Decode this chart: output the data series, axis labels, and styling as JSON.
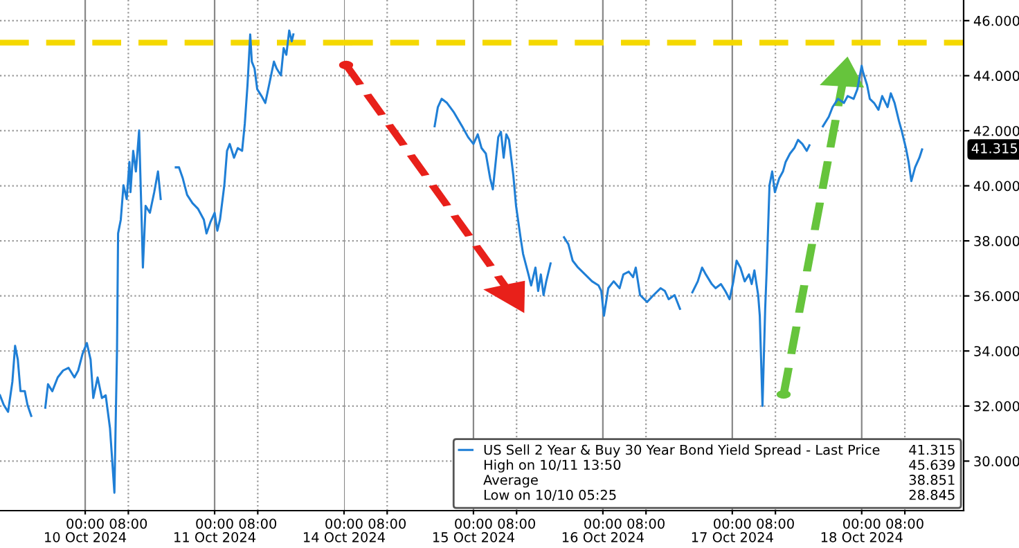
{
  "chart_data": [
    {
      "type": "line",
      "tick_labels": "x",
      "xlim": [
        "2024-10-09T08:12",
        "2024-10-12T00:00"
      ],
      "ylim": [
        28.2,
        46.75
      ],
      "xticks": [
        {
          "value": "2024-10-10T00:00",
          "label": "00:00\n10 Oct 2024"
        },
        {
          "value": "2024-10-10T08:00",
          "label": "08:00"
        },
        {
          "value": "2024-10-11T00:00",
          "label": "00:00\n11 Oct 2024"
        },
        {
          "value": "2024-10-11T08:00",
          "label": "08:00"
        }
      ],
      "yticks": [
        30,
        32,
        34,
        36,
        38,
        40,
        42,
        44,
        46
      ],
      "grid": true,
      "line_style": "solid",
      "marker": "none",
      "series": [
        {
          "color": "#1f7fd6",
          "x": [
            "2024-10-09T08:12",
            "2024-10-09T08:54",
            "2024-10-09T09:42",
            "2024-10-09T10:30",
            "2024-10-09T11:00",
            "2024-10-09T11:30",
            "2024-10-09T12:00",
            "2024-10-09T12:48",
            "2024-10-09T13:18",
            "2024-10-09T14:00",
            "2024-10-09T15:18",
            "2024-10-09T16:36",
            "2024-10-09T17:06",
            "2024-10-09T17:54",
            "2024-10-09T18:54",
            "2024-10-09T19:54",
            "2024-10-09T20:54",
            "2024-10-09T22:00",
            "2024-10-09T22:42",
            "2024-10-09T23:30",
            "2024-10-10T00:18",
            "2024-10-10T01:00",
            "2024-10-10T01:30",
            "2024-10-10T02:18",
            "2024-10-10T03:06",
            "2024-10-10T03:48",
            "2024-10-10T04:36",
            "2024-10-10T05:25",
            "2024-10-10T05:54",
            "2024-10-10T06:06",
            "2024-10-10T06:36",
            "2024-10-10T07:06",
            "2024-10-10T07:42",
            "2024-10-10T08:12",
            "2024-10-10T08:24",
            "2024-10-10T08:54",
            "2024-10-10T09:24",
            "2024-10-10T10:00",
            "2024-10-10T10:30",
            "2024-10-10T10:42",
            "2024-10-10T11:12",
            "2024-10-10T12:00",
            "2024-10-10T12:48",
            "2024-10-10T13:30",
            "2024-10-10T14:00",
            "2024-10-10T15:24",
            "2024-10-10T16:48",
            "2024-10-10T17:24",
            "2024-10-10T18:06",
            "2024-10-10T18:54",
            "2024-10-10T19:54",
            "2024-10-10T20:54",
            "2024-10-10T22:00",
            "2024-10-10T22:30",
            "2024-10-10T23:12",
            "2024-10-11T00:00",
            "2024-10-11T00:30",
            "2024-10-11T01:00",
            "2024-10-11T01:48",
            "2024-10-11T02:18",
            "2024-10-11T02:48",
            "2024-10-11T03:36",
            "2024-10-11T04:18",
            "2024-10-11T05:06",
            "2024-10-11T05:36",
            "2024-10-11T06:06",
            "2024-10-11T06:36",
            "2024-10-11T06:54",
            "2024-10-11T07:24",
            "2024-10-11T07:54",
            "2024-10-11T08:42",
            "2024-10-11T09:24",
            "2024-10-11T10:12",
            "2024-10-11T11:00",
            "2024-10-11T11:30",
            "2024-10-11T12:18",
            "2024-10-11T12:48",
            "2024-10-11T13:18",
            "2024-10-11T13:50",
            "2024-10-11T14:18",
            "2024-10-11T14:36"
          ],
          "values": [
            32.39,
            32.04,
            31.79,
            32.89,
            34.19,
            33.69,
            32.54,
            32.54,
            32.04,
            31.64,
            null,
            31.94,
            32.79,
            32.54,
            33.04,
            33.29,
            33.39,
            33.04,
            33.29,
            33.89,
            34.29,
            33.69,
            32.29,
            33.04,
            32.29,
            32.39,
            31.19,
            28.85,
            34.04,
            38.27,
            38.77,
            40.02,
            39.52,
            40.87,
            39.77,
            41.27,
            40.52,
            42.01,
            38.52,
            37.03,
            39.27,
            39.02,
            39.77,
            40.52,
            39.52,
            null,
            40.67,
            40.67,
            40.27,
            39.67,
            39.37,
            39.17,
            38.77,
            38.27,
            38.67,
            39.02,
            38.37,
            38.77,
            40.02,
            41.27,
            41.52,
            41.02,
            41.37,
            41.27,
            42.26,
            43.66,
            45.5,
            44.51,
            44.26,
            43.51,
            43.26,
            43.01,
            43.76,
            44.51,
            44.26,
            44.01,
            45.0,
            44.76,
            45.64,
            45.25,
            45.5
          ]
        }
      ],
      "ref_lines": [
        {
          "axis": "y",
          "value": 45.2,
          "color": "#f5d800",
          "line_style": "dashed"
        }
      ]
    },
    {
      "type": "line",
      "xlim": [
        "2024-10-14T00:00",
        "2024-10-18T18:54"
      ],
      "ylim": [
        28.2,
        46.75
      ],
      "xticks": [
        {
          "value": "2024-10-14T00:00",
          "label": "00:00\n14 Oct 2024"
        },
        {
          "value": "2024-10-14T08:00",
          "label": "08:00"
        },
        {
          "value": "2024-10-15T00:00",
          "label": "00:00\n15 Oct 2024"
        },
        {
          "value": "2024-10-15T08:00",
          "label": "08:00"
        },
        {
          "value": "2024-10-16T00:00",
          "label": "00:00\n16 Oct 2024"
        },
        {
          "value": "2024-10-16T08:00",
          "label": "08:00"
        },
        {
          "value": "2024-10-17T00:00",
          "label": "00:00\n17 Oct 2024"
        },
        {
          "value": "2024-10-17T08:00",
          "label": "08:00"
        },
        {
          "value": "2024-10-18T00:00",
          "label": "00:00\n18 Oct 2024"
        },
        {
          "value": "2024-10-18T08:00",
          "label": "08:00"
        }
      ],
      "yticks": [
        {
          "value": 30,
          "label": "30.000"
        },
        {
          "value": 32,
          "label": "32.000"
        },
        {
          "value": 34,
          "label": "34.000"
        },
        {
          "value": 36,
          "label": "36.000"
        },
        {
          "value": 38,
          "label": "38.000"
        },
        {
          "value": 40,
          "label": "40.000"
        },
        {
          "value": 42,
          "label": "42.000"
        },
        {
          "value": 44,
          "label": "44.000"
        },
        {
          "value": 46,
          "label": "46.000"
        }
      ],
      "grid": true,
      "legend": "bottom right",
      "line_style": "solid",
      "marker": "none",
      "series": [
        {
          "name": "US Sell 2 Year & Buy 30 Year Bond Yield Spread - Last Price",
          "color": "#1f7fd6",
          "x": [
            "2024-10-14T16:48",
            "2024-10-14T17:24",
            "2024-10-14T18:06",
            "2024-10-14T19:06",
            "2024-10-14T20:24",
            "2024-10-14T21:54",
            "2024-10-14T23:00",
            "2024-10-15T00:00",
            "2024-10-15T00:48",
            "2024-10-15T01:30",
            "2024-10-15T02:18",
            "2024-10-15T03:06",
            "2024-10-15T03:36",
            "2024-10-15T04:36",
            "2024-10-15T05:06",
            "2024-10-15T05:36",
            "2024-10-15T06:06",
            "2024-10-15T06:36",
            "2024-10-15T07:24",
            "2024-10-15T07:54",
            "2024-10-15T08:42",
            "2024-10-15T09:12",
            "2024-10-15T10:12",
            "2024-10-15T10:42",
            "2024-10-15T11:30",
            "2024-10-15T12:00",
            "2024-10-15T12:30",
            "2024-10-15T13:00",
            "2024-10-15T13:30",
            "2024-10-15T14:18",
            "2024-10-15T15:30",
            "2024-10-15T16:48",
            "2024-10-15T17:36",
            "2024-10-15T18:24",
            "2024-10-15T19:24",
            "2024-10-15T20:42",
            "2024-10-15T22:00",
            "2024-10-15T23:12",
            "2024-10-15T23:42",
            "2024-10-16T00:12",
            "2024-10-16T01:00",
            "2024-10-16T02:00",
            "2024-10-16T03:06",
            "2024-10-16T03:48",
            "2024-10-16T04:48",
            "2024-10-16T05:36",
            "2024-10-16T06:06",
            "2024-10-16T06:54",
            "2024-10-16T08:12",
            "2024-10-16T09:24",
            "2024-10-16T10:42",
            "2024-10-16T11:30",
            "2024-10-16T12:12",
            "2024-10-16T13:18",
            "2024-10-16T14:18",
            "2024-10-16T15:30",
            "2024-10-16T16:36",
            "2024-10-16T17:36",
            "2024-10-16T18:24",
            "2024-10-16T19:06",
            "2024-10-16T20:12",
            "2024-10-16T20:54",
            "2024-10-16T21:54",
            "2024-10-16T22:42",
            "2024-10-16T23:30",
            "2024-10-17T00:12",
            "2024-10-17T00:48",
            "2024-10-17T01:30",
            "2024-10-17T02:18",
            "2024-10-17T03:06",
            "2024-10-17T03:36",
            "2024-10-17T04:06",
            "2024-10-17T04:48",
            "2024-10-17T05:06",
            "2024-10-17T05:36",
            "2024-10-17T06:06",
            "2024-10-17T06:24",
            "2024-10-17T06:54",
            "2024-10-17T07:24",
            "2024-10-17T07:54",
            "2024-10-17T08:42",
            "2024-10-17T09:24",
            "2024-10-17T09:54",
            "2024-10-17T10:42",
            "2024-10-17T11:30",
            "2024-10-17T12:12",
            "2024-10-17T13:00",
            "2024-10-17T13:48",
            "2024-10-17T14:18",
            "2024-10-17T15:30",
            "2024-10-17T16:48",
            "2024-10-17T17:54",
            "2024-10-17T18:36",
            "2024-10-17T19:36",
            "2024-10-17T20:42",
            "2024-10-17T21:24",
            "2024-10-17T22:30",
            "2024-10-17T23:12",
            "2024-10-18T00:00",
            "2024-10-18T00:12",
            "2024-10-18T01:00",
            "2024-10-18T01:30",
            "2024-10-18T02:18",
            "2024-10-18T03:06",
            "2024-10-18T03:48",
            "2024-10-18T04:48",
            "2024-10-18T05:24",
            "2024-10-18T06:06",
            "2024-10-18T06:54",
            "2024-10-18T07:24",
            "2024-10-18T08:12",
            "2024-10-18T08:42",
            "2024-10-18T09:12",
            "2024-10-18T09:54",
            "2024-10-18T10:42",
            "2024-10-18T11:12"
          ],
          "values": [
            42.16,
            42.86,
            43.16,
            43.01,
            42.66,
            42.16,
            41.77,
            41.52,
            41.87,
            41.37,
            41.17,
            40.27,
            39.87,
            41.77,
            41.96,
            41.02,
            41.87,
            41.67,
            40.37,
            39.27,
            38.17,
            37.53,
            36.78,
            36.38,
            37.03,
            36.18,
            36.78,
            36.03,
            36.53,
            37.18,
            null,
            38.13,
            37.88,
            37.28,
            37.03,
            36.78,
            36.53,
            36.38,
            36.18,
            35.28,
            36.28,
            36.53,
            36.28,
            36.78,
            36.88,
            36.68,
            37.03,
            36.03,
            35.78,
            36.03,
            36.28,
            36.18,
            35.88,
            36.03,
            35.53,
            null,
            36.13,
            36.53,
            37.03,
            36.78,
            36.43,
            36.28,
            36.43,
            36.18,
            35.88,
            36.53,
            37.28,
            37.03,
            36.53,
            36.78,
            36.43,
            36.93,
            36.03,
            35.28,
            32.0,
            35.53,
            37.03,
            40.02,
            40.52,
            39.77,
            40.27,
            40.52,
            40.87,
            41.17,
            41.37,
            41.67,
            41.52,
            41.27,
            41.47,
            null,
            42.16,
            42.51,
            42.86,
            43.16,
            43.01,
            43.26,
            43.16,
            43.51,
            44.36,
            44.16,
            43.66,
            43.16,
            43.01,
            42.76,
            43.26,
            42.86,
            43.36,
            43.01,
            42.36,
            42.01,
            41.37,
            40.87,
            40.17,
            40.67,
            41.02,
            41.32
          ]
        }
      ],
      "ref_lines": [
        {
          "axis": "y",
          "value": 45.2,
          "color": "#f5d800",
          "line_style": "dashed"
        }
      ],
      "annotations": [
        "41.315",
        "High on 10/11 13:50",
        "45.639",
        "Average",
        "38.851",
        "Low on 10/10 05:25",
        "28.845",
        "41.315"
      ]
    }
  ]
}
